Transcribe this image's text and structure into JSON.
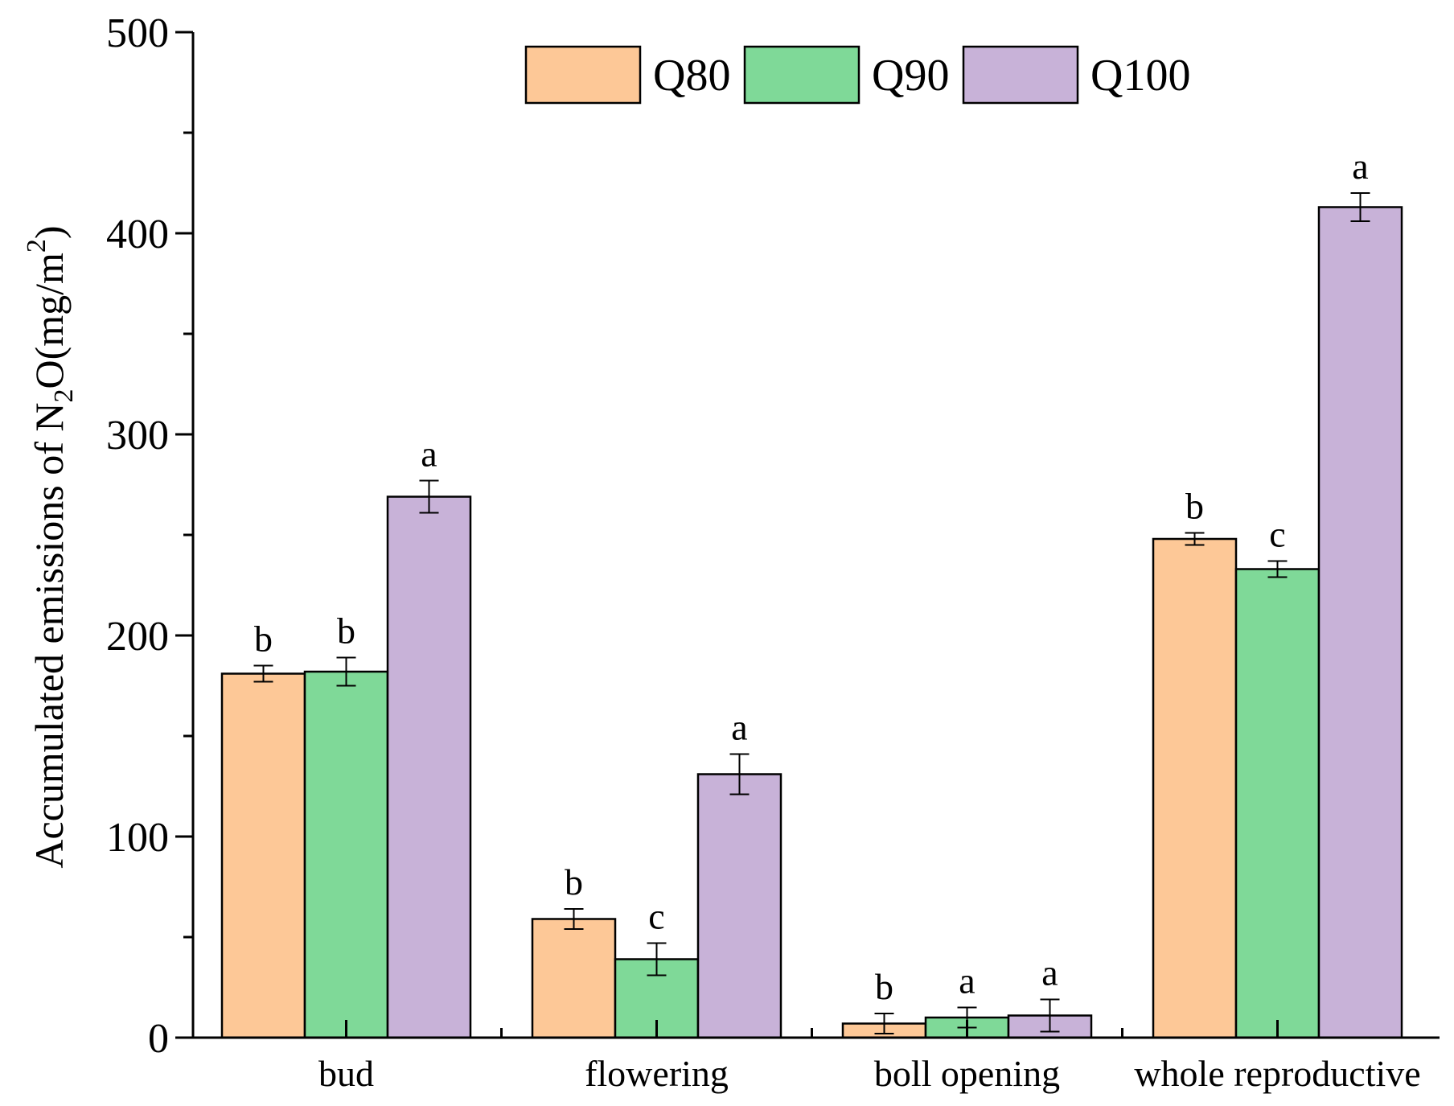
{
  "chart_data": {
    "type": "bar",
    "title": "",
    "xlabel": "",
    "ylabel_parts": {
      "pre": "Accumulated emissions of N",
      "sub": "2",
      "mid": "O(mg/m",
      "sup": "2",
      "post": ")"
    },
    "ylim": [
      0,
      500
    ],
    "yticks": [
      0,
      100,
      200,
      300,
      400,
      500
    ],
    "tick_labels": [
      "0",
      "100",
      "200",
      "300",
      "400",
      "500"
    ],
    "categories": [
      "bud",
      "flowering",
      "boll opening",
      "whole reproductive"
    ],
    "series": [
      {
        "name": "Q80",
        "color": "#fdc897",
        "values": [
          181,
          59,
          7,
          248
        ],
        "errors": [
          4,
          5,
          5,
          3
        ],
        "labels": [
          "b",
          "b",
          "b",
          "b"
        ]
      },
      {
        "name": "Q90",
        "color": "#7fd998",
        "values": [
          182,
          39,
          10,
          233
        ],
        "errors": [
          7,
          8,
          5,
          4
        ],
        "labels": [
          "b",
          "c",
          "a",
          "c"
        ]
      },
      {
        "name": "Q100",
        "color": "#c8b2d8",
        "values": [
          269,
          131,
          11,
          413
        ],
        "errors": [
          8,
          10,
          8,
          7
        ],
        "labels": [
          "a",
          "a",
          "a",
          "a"
        ]
      }
    ],
    "legend_position": "top-center"
  }
}
